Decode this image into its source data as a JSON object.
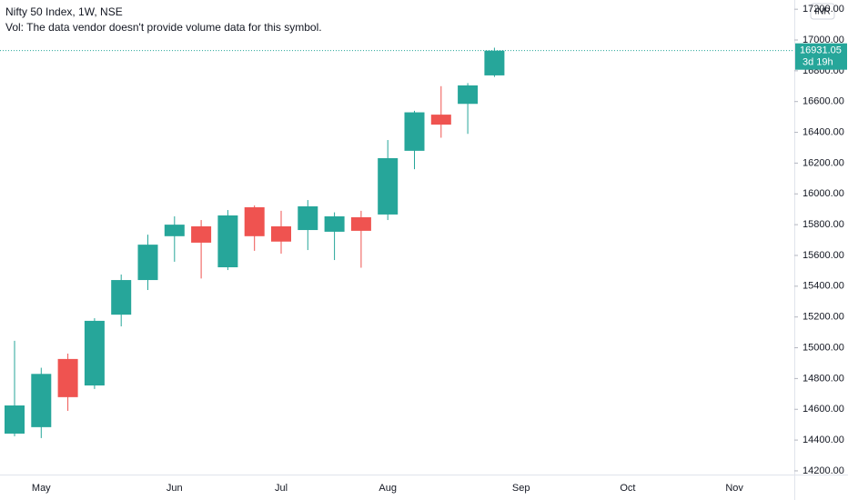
{
  "chart_data": {
    "type": "candlestick",
    "title": "Nifty 50 Index, 1W, NSE",
    "subtitle": "Vol: The data vendor doesn't provide volume data for this symbol.",
    "currency": "INR",
    "countdown": "3d 19h",
    "up_color": "#26a69a",
    "down_color": "#ef5350",
    "categories": [
      null,
      "May",
      null,
      null,
      null,
      null,
      "Jun",
      null,
      null,
      null,
      "Jul",
      null,
      null,
      null,
      "Aug",
      null,
      null,
      null,
      null,
      "Sep",
      null,
      null,
      null,
      "Oct",
      null,
      null,
      null,
      "Nov",
      null,
      null
    ],
    "open": [
      14442,
      14484,
      14927,
      14755,
      15215,
      15440,
      15725,
      15789,
      15523,
      15913,
      15789,
      15765,
      15754,
      15848,
      15866,
      16280,
      16515,
      16585,
      16770,
      null,
      null,
      null,
      null,
      null,
      null,
      null,
      null,
      null,
      null,
      null
    ],
    "high": [
      15045,
      14870,
      14962,
      15192,
      15476,
      15735,
      15854,
      15830,
      15895,
      15925,
      15890,
      15960,
      15880,
      15890,
      16350,
      16540,
      16700,
      16720,
      16950,
      null,
      null,
      null,
      null,
      null,
      null,
      null,
      null,
      null,
      null,
      null
    ],
    "low": [
      14425,
      14413,
      14590,
      14732,
      15139,
      15375,
      15559,
      15450,
      15505,
      15630,
      15612,
      15635,
      15570,
      15520,
      15830,
      16160,
      16365,
      16390,
      16760,
      null,
      null,
      null,
      null,
      null,
      null,
      null,
      null,
      null,
      null,
      null
    ],
    "close": [
      14625,
      14830,
      14679,
      15175,
      15440,
      15670,
      15800,
      15683,
      15860,
      15725,
      15690,
      15919,
      15854,
      15760,
      16232,
      16530,
      16450,
      16705,
      16931.05,
      null,
      null,
      null,
      null,
      null,
      null,
      null,
      null,
      null,
      null,
      null
    ],
    "ylim": [
      14176,
      17260
    ],
    "yticks": [
      {
        "value": 14200,
        "label": "14200.00"
      },
      {
        "value": 14400,
        "label": "14400.00"
      },
      {
        "value": 14600,
        "label": "14600.00"
      },
      {
        "value": 14800,
        "label": "14800.00"
      },
      {
        "value": 15000,
        "label": "15000.00"
      },
      {
        "value": 15200,
        "label": "15200.00"
      },
      {
        "value": 15400,
        "label": "15400.00"
      },
      {
        "value": 15600,
        "label": "15600.00"
      },
      {
        "value": 15800,
        "label": "15800.00"
      },
      {
        "value": 16000,
        "label": "16000.00"
      },
      {
        "value": 16200,
        "label": "16200.00"
      },
      {
        "value": 16400,
        "label": "16400.00"
      },
      {
        "value": 16600,
        "label": "16600.00"
      },
      {
        "value": 16800,
        "label": "16800.00"
      },
      {
        "value": 17000,
        "label": "17000.00"
      },
      {
        "value": 17200,
        "label": "17200.00"
      }
    ],
    "grid": false
  }
}
